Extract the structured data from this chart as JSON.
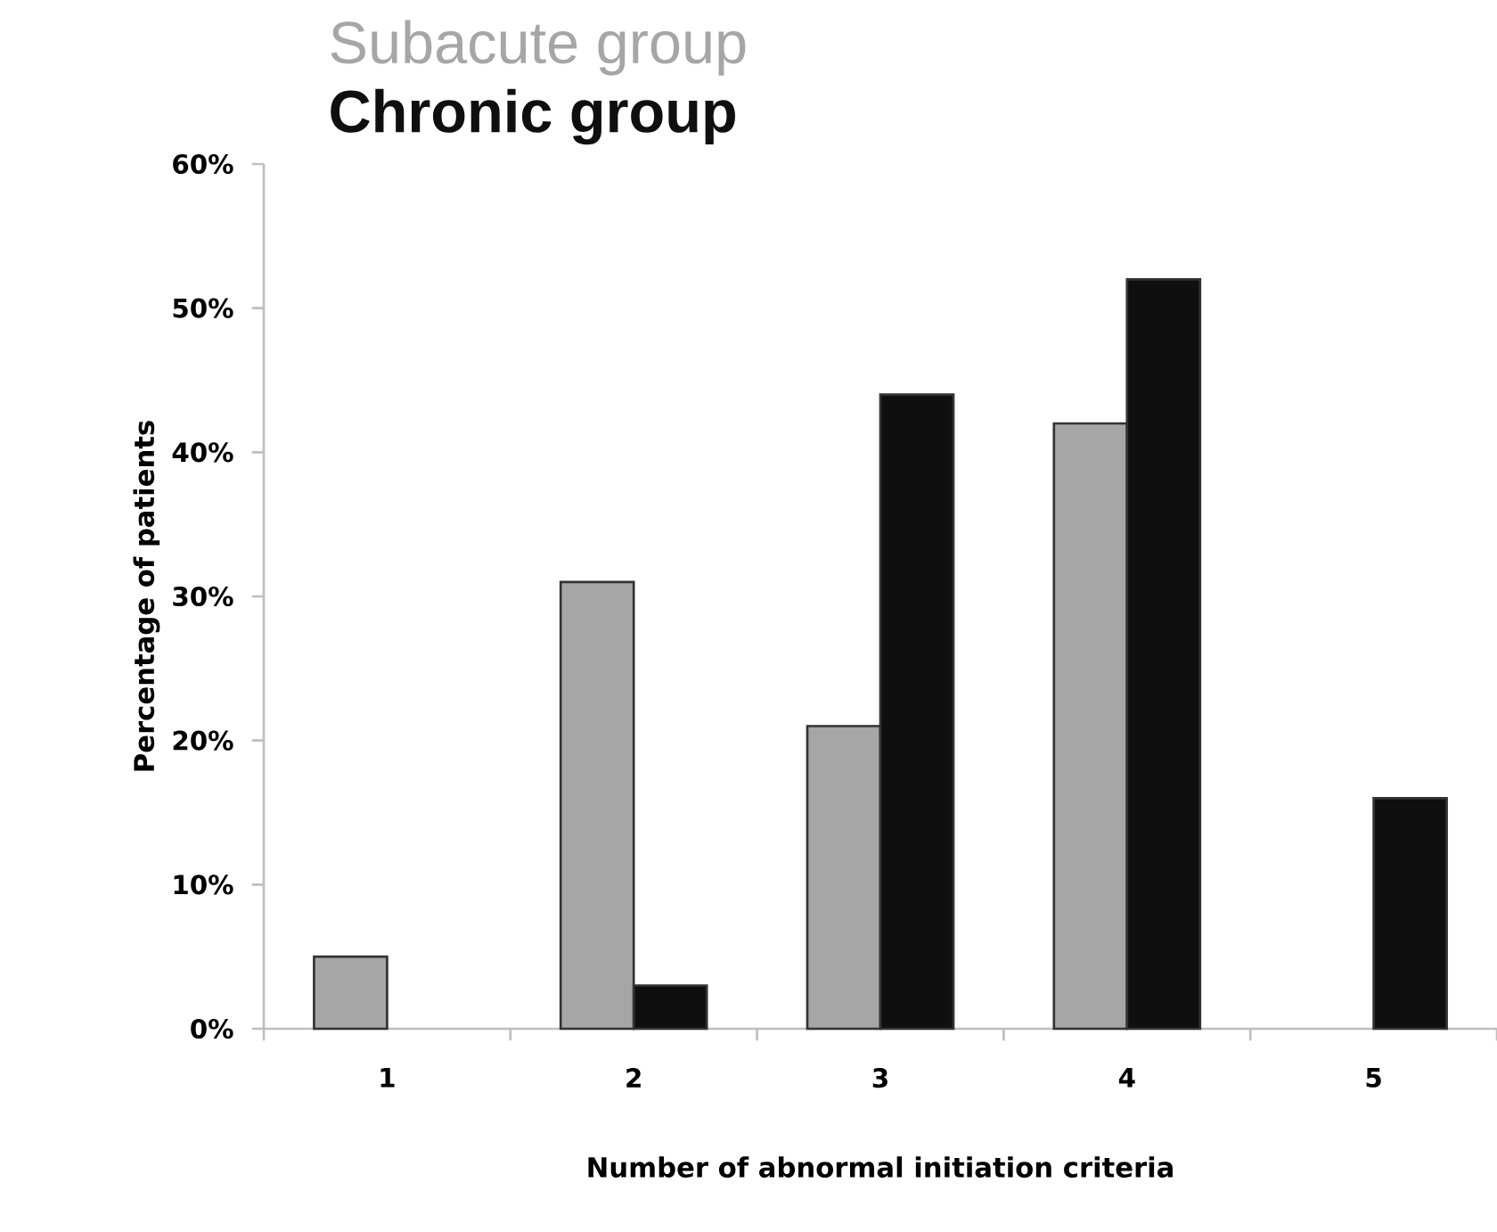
{
  "chart_data": {
    "type": "bar",
    "xlabel": "Number of abnormal initiation criteria",
    "ylabel": "Percentage of patients",
    "categories": [
      "1",
      "2",
      "3",
      "4",
      "5"
    ],
    "series": [
      {
        "name": "Subacute group",
        "color": "#a6a6a6",
        "values": [
          5,
          31,
          21,
          42,
          null
        ]
      },
      {
        "name": "Chronic group",
        "color": "#0f0f0f",
        "values": [
          null,
          3,
          44,
          52,
          16
        ]
      }
    ],
    "ylim": [
      0,
      60
    ],
    "yticks": [
      {
        "value": 0,
        "label": "0%"
      },
      {
        "value": 10,
        "label": "10%"
      },
      {
        "value": 20,
        "label": "20%"
      },
      {
        "value": 30,
        "label": "30%"
      },
      {
        "value": 40,
        "label": "40%"
      },
      {
        "value": 50,
        "label": "50%"
      },
      {
        "value": 60,
        "label": "60%"
      }
    ],
    "grid": false,
    "legend": "top left"
  }
}
